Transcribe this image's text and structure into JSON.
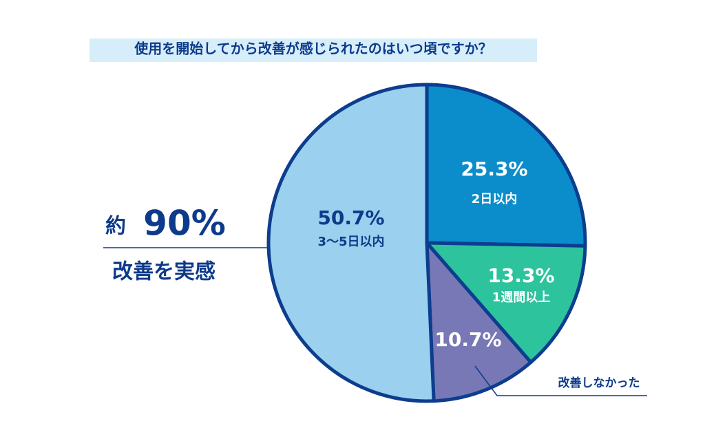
{
  "chart_data": {
    "type": "pie",
    "title": "使用を開始してから改善が感じられたのはいつ頃ですか？",
    "categories": [
      "2日以内",
      "1週間以上",
      "改善しなかった",
      "3～5日以内"
    ],
    "values": [
      25.3,
      13.3,
      10.7,
      50.7
    ],
    "value_labels": [
      "25.3%",
      "13.3%",
      "10.7%",
      "50.7%"
    ],
    "colors": [
      "#0b8dcb",
      "#2dc39d",
      "#7878b6",
      "#9bd0ee"
    ],
    "annotation": {
      "prefix": "約",
      "figure": "90%",
      "caption": "改善を実感"
    }
  }
}
